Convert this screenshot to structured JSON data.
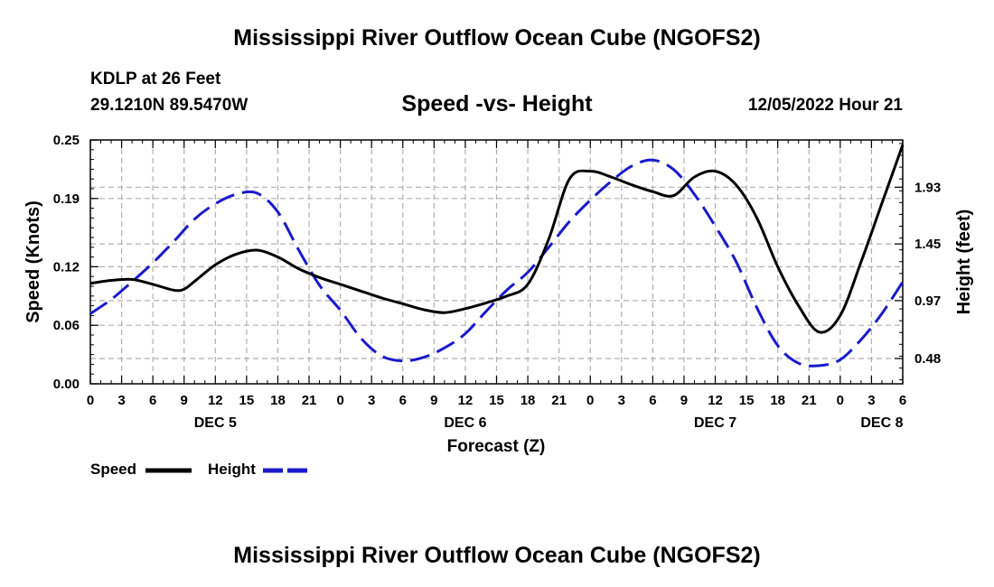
{
  "page": {
    "top_title": "Mississippi River Outflow Ocean Cube (NGOFS2)",
    "station": "KDLP at 26 Feet",
    "coords": "29.1210N  89.5470W",
    "subtitle": "Speed -vs- Height",
    "datetime": "12/05/2022 Hour 21",
    "bottom_title": "Mississippi River Outflow Ocean Cube (NGOFS2)"
  },
  "legend": {
    "speed_label": "Speed",
    "height_label": "Height"
  },
  "colors": {
    "speed": "#000000",
    "height": "#1a1acc",
    "grid": "#b0b0b0"
  },
  "chart_data": {
    "type": "line",
    "title": "Speed -vs- Height",
    "xlabel": "Forecast (Z)",
    "ylabel": "Speed (Knots)",
    "y2label": "Height (feet)",
    "xlim": [
      0,
      78
    ],
    "ylim": [
      0,
      0.25
    ],
    "y2lim": [
      0.266,
      2.33
    ],
    "yticks": [
      0.0,
      0.06,
      0.12,
      0.19,
      0.25
    ],
    "ytick_labels": [
      "0.00",
      "0.06",
      "0.12",
      "0.19",
      "0.25"
    ],
    "y2ticks": [
      0.48,
      0.97,
      1.45,
      1.93
    ],
    "y2tick_labels": [
      "0.48",
      "0.97",
      "1.45",
      "1.93"
    ],
    "xticks": [
      0,
      3,
      6,
      9,
      12,
      15,
      18,
      21,
      24,
      27,
      30,
      33,
      36,
      39,
      42,
      45,
      48,
      51,
      54,
      57,
      60,
      63,
      66,
      69,
      72,
      75,
      78
    ],
    "xtick_labels": [
      "0",
      "3",
      "6",
      "9",
      "12",
      "15",
      "18",
      "21",
      "0",
      "3",
      "6",
      "9",
      "12",
      "15",
      "18",
      "21",
      "0",
      "3",
      "6",
      "9",
      "12",
      "15",
      "18",
      "21",
      "0",
      "3",
      "6"
    ],
    "day_labels": [
      {
        "x": 12,
        "label": "DEC 5"
      },
      {
        "x": 36,
        "label": "DEC 6"
      },
      {
        "x": 60,
        "label": "DEC 7"
      },
      {
        "x": 76,
        "label": "DEC 8"
      }
    ],
    "grid": true,
    "series": [
      {
        "name": "Speed",
        "axis": "left",
        "style": "solid",
        "x": [
          0,
          2,
          4,
          6,
          8,
          9,
          10,
          12,
          14,
          16,
          18,
          20,
          22,
          24,
          26,
          28,
          30,
          32,
          34,
          36,
          38,
          40,
          42,
          44,
          46,
          48,
          50,
          52,
          54,
          56,
          58,
          60,
          62,
          64,
          66,
          68,
          70,
          72,
          74,
          76,
          78
        ],
        "values": [
          0.103,
          0.106,
          0.107,
          0.102,
          0.096,
          0.097,
          0.105,
          0.122,
          0.133,
          0.137,
          0.13,
          0.118,
          0.109,
          0.102,
          0.095,
          0.088,
          0.082,
          0.076,
          0.073,
          0.077,
          0.083,
          0.09,
          0.102,
          0.148,
          0.21,
          0.218,
          0.212,
          0.204,
          0.197,
          0.193,
          0.212,
          0.218,
          0.204,
          0.17,
          0.12,
          0.08,
          0.053,
          0.07,
          0.125,
          0.185,
          0.245
        ]
      },
      {
        "name": "Height",
        "axis": "right",
        "style": "dashed",
        "x": [
          0,
          2,
          4,
          6,
          8,
          10,
          12,
          14,
          16,
          18,
          20,
          22,
          24,
          26,
          28,
          30,
          32,
          34,
          36,
          38,
          40,
          42,
          44,
          46,
          48,
          50,
          52,
          54,
          56,
          58,
          60,
          62,
          64,
          66,
          68,
          70,
          72,
          74,
          76,
          78
        ],
        "values": [
          0.86,
          0.98,
          1.13,
          1.29,
          1.47,
          1.66,
          1.79,
          1.87,
          1.88,
          1.72,
          1.4,
          1.1,
          0.89,
          0.65,
          0.5,
          0.46,
          0.49,
          0.57,
          0.69,
          0.88,
          1.06,
          1.21,
          1.42,
          1.64,
          1.82,
          1.98,
          2.11,
          2.16,
          2.08,
          1.87,
          1.6,
          1.3,
          0.91,
          0.59,
          0.44,
          0.42,
          0.47,
          0.64,
          0.86,
          1.13
        ]
      }
    ]
  }
}
